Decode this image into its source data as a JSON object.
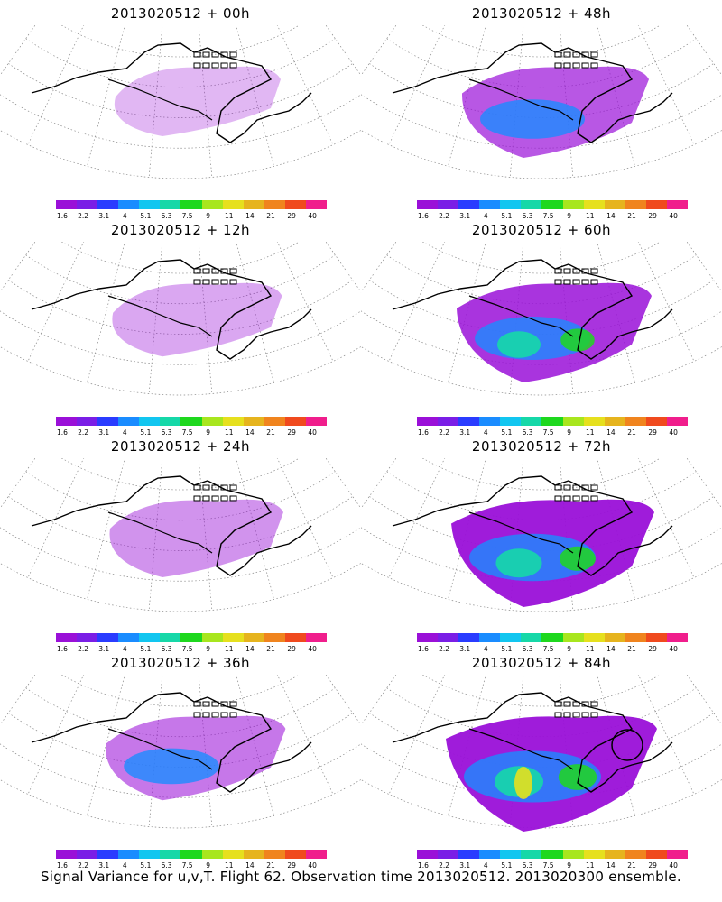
{
  "panels": [
    {
      "title": "2013020512 + 00h",
      "intensity": 0.05
    },
    {
      "title": "2013020512 + 48h",
      "intensity": 0.45
    },
    {
      "title": "2013020512 + 12h",
      "intensity": 0.12
    },
    {
      "title": "2013020512 + 60h",
      "intensity": 0.6
    },
    {
      "title": "2013020512 + 24h",
      "intensity": 0.2
    },
    {
      "title": "2013020512 + 72h",
      "intensity": 0.75
    },
    {
      "title": "2013020512 + 36h",
      "intensity": 0.32
    },
    {
      "title": "2013020512 + 84h",
      "intensity": 0.9
    }
  ],
  "colorbar": {
    "colors": [
      "#9a10d8",
      "#7a1ee6",
      "#2a3cff",
      "#1a8cff",
      "#12c6f0",
      "#16d8a8",
      "#1ed81e",
      "#a8e61e",
      "#e6e01e",
      "#e6b41e",
      "#f0841e",
      "#f04a1e",
      "#f01e8c"
    ],
    "ticks": [
      "1.6",
      "2.2",
      "3.1",
      "4",
      "5.1",
      "6.3",
      "7.5",
      "9",
      "11",
      "14",
      "21",
      "29",
      "40"
    ]
  },
  "caption": "Signal Variance for u,v,T. Flight 62. Observation time 2013020512. 2013020300 ensemble."
}
